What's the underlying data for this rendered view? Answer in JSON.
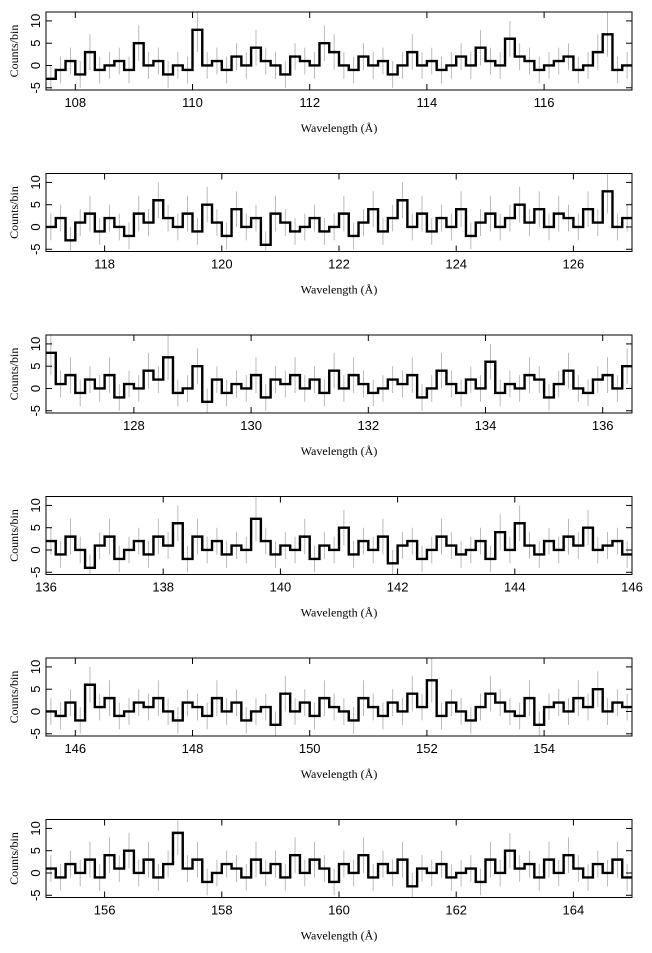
{
  "chart_data": [
    {
      "type": "step",
      "xlabel": "Wavelength (Å)",
      "ylabel": "Counts/bin",
      "xlim": [
        107.5,
        117.5
      ],
      "ylim": [
        -5.5,
        12
      ],
      "xticks": [
        108,
        110,
        112,
        114,
        116
      ],
      "yticks": [
        -5,
        0,
        5,
        10
      ],
      "values": [
        -3,
        -1,
        1,
        -2,
        3,
        -1,
        0,
        1,
        -1,
        5,
        0,
        1,
        -2,
        0,
        -1,
        8,
        0,
        1,
        -1,
        2,
        0,
        4,
        1,
        0,
        -2,
        2,
        1,
        0,
        5,
        3,
        0,
        -1,
        2,
        0,
        1,
        -2,
        0,
        3,
        0,
        1,
        -1,
        0,
        2,
        0,
        4,
        1,
        0,
        6,
        2,
        1,
        -1,
        0,
        1,
        2,
        -1,
        0,
        3,
        7,
        -1,
        0
      ],
      "errors": [
        3,
        3,
        3,
        3,
        4,
        3,
        3,
        3,
        3,
        4,
        3,
        3,
        3,
        3,
        3,
        5,
        3,
        3,
        3,
        3,
        3,
        4,
        3,
        3,
        3,
        3,
        3,
        3,
        4,
        4,
        3,
        3,
        3,
        3,
        3,
        3,
        3,
        4,
        3,
        3,
        3,
        3,
        3,
        3,
        4,
        3,
        3,
        4,
        3,
        3,
        3,
        3,
        3,
        3,
        3,
        3,
        4,
        5,
        3,
        3
      ]
    },
    {
      "type": "step",
      "xlabel": "Wavelength (Å)",
      "ylabel": "Counts/bin",
      "xlim": [
        117,
        127
      ],
      "ylim": [
        -5.5,
        12
      ],
      "xticks": [
        118,
        120,
        122,
        124,
        126
      ],
      "yticks": [
        -5,
        0,
        5,
        10
      ],
      "values": [
        0,
        2,
        -3,
        1,
        3,
        -1,
        2,
        0,
        -2,
        3,
        1,
        6,
        2,
        0,
        3,
        -1,
        5,
        1,
        -2,
        4,
        0,
        2,
        -4,
        3,
        1,
        -1,
        0,
        2,
        -1,
        0,
        3,
        -2,
        1,
        4,
        -1,
        2,
        6,
        0,
        3,
        -1,
        2,
        0,
        4,
        -2,
        1,
        3,
        0,
        2,
        5,
        1,
        4,
        0,
        3,
        2,
        0,
        4,
        1,
        8,
        0,
        2
      ],
      "errors": [
        3,
        3,
        3,
        3,
        4,
        3,
        3,
        3,
        3,
        4,
        3,
        4,
        3,
        3,
        4,
        3,
        4,
        3,
        3,
        4,
        3,
        3,
        3,
        4,
        3,
        3,
        3,
        3,
        3,
        3,
        4,
        3,
        3,
        4,
        3,
        3,
        4,
        3,
        4,
        3,
        3,
        3,
        4,
        3,
        3,
        4,
        3,
        3,
        4,
        3,
        4,
        3,
        4,
        3,
        3,
        4,
        3,
        5,
        3,
        3
      ]
    },
    {
      "type": "step",
      "xlabel": "Wavelength (Å)",
      "ylabel": "Counts/bin",
      "xlim": [
        126.5,
        136.5
      ],
      "ylim": [
        -5.5,
        12
      ],
      "xticks": [
        128,
        130,
        132,
        134,
        136
      ],
      "yticks": [
        -5,
        0,
        5,
        10
      ],
      "values": [
        8,
        1,
        3,
        -1,
        2,
        0,
        3,
        -2,
        1,
        0,
        4,
        2,
        7,
        -1,
        0,
        5,
        -3,
        2,
        -1,
        1,
        0,
        3,
        -2,
        2,
        1,
        3,
        0,
        2,
        -1,
        4,
        0,
        3,
        1,
        -1,
        0,
        2,
        1,
        3,
        -2,
        0,
        4,
        1,
        -1,
        2,
        0,
        6,
        -1,
        1,
        0,
        3,
        2,
        -2,
        1,
        4,
        0,
        -1,
        2,
        3,
        0,
        5
      ],
      "errors": [
        5,
        3,
        4,
        3,
        3,
        3,
        4,
        3,
        3,
        3,
        4,
        3,
        5,
        3,
        3,
        4,
        3,
        3,
        3,
        3,
        3,
        4,
        3,
        3,
        3,
        4,
        3,
        3,
        3,
        4,
        3,
        4,
        3,
        3,
        3,
        3,
        3,
        4,
        3,
        3,
        4,
        3,
        3,
        3,
        3,
        4,
        3,
        3,
        3,
        4,
        3,
        3,
        3,
        4,
        3,
        3,
        3,
        4,
        3,
        4
      ]
    },
    {
      "type": "step",
      "xlabel": "Wavelength (Å)",
      "ylabel": "Counts/bin",
      "xlim": [
        136,
        146
      ],
      "ylim": [
        -5.5,
        12
      ],
      "xticks": [
        136,
        138,
        140,
        142,
        144,
        146
      ],
      "yticks": [
        -5,
        0,
        5,
        10
      ],
      "values": [
        2,
        -1,
        3,
        0,
        -4,
        1,
        3,
        -2,
        0,
        2,
        -1,
        3,
        1,
        6,
        -2,
        3,
        0,
        2,
        -1,
        1,
        0,
        7,
        2,
        -1,
        1,
        0,
        3,
        -2,
        1,
        0,
        5,
        -1,
        2,
        0,
        3,
        -3,
        1,
        2,
        -2,
        0,
        3,
        1,
        -1,
        0,
        2,
        -2,
        4,
        0,
        6,
        1,
        -1,
        2,
        0,
        3,
        1,
        5,
        0,
        1,
        2,
        -1
      ],
      "errors": [
        3,
        3,
        4,
        3,
        3,
        3,
        4,
        3,
        3,
        3,
        3,
        4,
        3,
        4,
        3,
        4,
        3,
        3,
        3,
        3,
        3,
        5,
        3,
        3,
        3,
        3,
        4,
        3,
        3,
        3,
        4,
        3,
        3,
        3,
        4,
        3,
        3,
        3,
        3,
        3,
        4,
        3,
        3,
        3,
        3,
        3,
        4,
        3,
        4,
        3,
        3,
        3,
        3,
        4,
        3,
        4,
        3,
        3,
        3,
        3
      ]
    },
    {
      "type": "step",
      "xlabel": "Wavelength (Å)",
      "ylabel": "Counts/bin",
      "xlim": [
        145.5,
        155.5
      ],
      "ylim": [
        -5.5,
        12
      ],
      "xticks": [
        146,
        148,
        150,
        152,
        154
      ],
      "yticks": [
        -5,
        0,
        5,
        10
      ],
      "values": [
        0,
        -1,
        2,
        -2,
        6,
        1,
        3,
        -1,
        0,
        2,
        1,
        3,
        0,
        -2,
        2,
        1,
        -1,
        3,
        0,
        2,
        -2,
        0,
        1,
        -3,
        4,
        0,
        2,
        -1,
        3,
        1,
        0,
        -2,
        3,
        1,
        -1,
        2,
        0,
        4,
        1,
        7,
        -1,
        2,
        0,
        -2,
        1,
        4,
        2,
        0,
        -1,
        3,
        -3,
        1,
        2,
        0,
        3,
        1,
        5,
        0,
        2,
        1
      ],
      "errors": [
        3,
        3,
        3,
        3,
        4,
        3,
        4,
        3,
        3,
        3,
        3,
        4,
        3,
        3,
        3,
        3,
        3,
        4,
        3,
        3,
        3,
        3,
        3,
        3,
        4,
        3,
        3,
        3,
        4,
        3,
        3,
        3,
        4,
        3,
        3,
        3,
        3,
        4,
        3,
        5,
        3,
        3,
        3,
        3,
        3,
        4,
        3,
        3,
        3,
        4,
        3,
        3,
        3,
        3,
        4,
        3,
        4,
        3,
        3,
        3
      ]
    },
    {
      "type": "step",
      "xlabel": "Wavelength (Å)",
      "ylabel": "Counts/bin",
      "xlim": [
        155,
        165
      ],
      "ylim": [
        -5.5,
        12
      ],
      "xticks": [
        156,
        158,
        160,
        162,
        164
      ],
      "yticks": [
        -5,
        0,
        5,
        10
      ],
      "values": [
        1,
        -1,
        2,
        0,
        3,
        -1,
        4,
        1,
        5,
        0,
        3,
        -1,
        2,
        9,
        1,
        3,
        -2,
        0,
        2,
        1,
        -1,
        3,
        0,
        2,
        -1,
        4,
        0,
        3,
        1,
        -2,
        2,
        0,
        4,
        -1,
        2,
        0,
        3,
        -3,
        1,
        0,
        2,
        -1,
        0,
        1,
        -2,
        3,
        0,
        5,
        1,
        2,
        -1,
        3,
        0,
        4,
        1,
        -1,
        2,
        0,
        3,
        -1
      ],
      "errors": [
        3,
        3,
        3,
        3,
        4,
        3,
        4,
        3,
        4,
        3,
        4,
        3,
        3,
        5,
        3,
        4,
        3,
        3,
        3,
        3,
        3,
        4,
        3,
        3,
        3,
        4,
        3,
        4,
        3,
        3,
        3,
        3,
        4,
        3,
        3,
        3,
        4,
        3,
        3,
        3,
        3,
        3,
        3,
        3,
        3,
        4,
        3,
        4,
        3,
        3,
        3,
        4,
        3,
        4,
        3,
        3,
        3,
        3,
        4,
        3
      ]
    }
  ]
}
